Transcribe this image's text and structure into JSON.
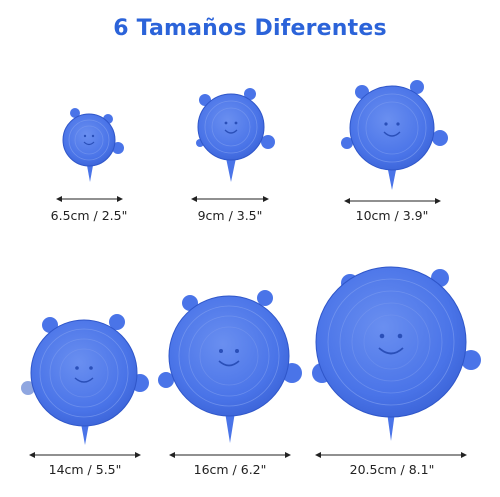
{
  "title": "6 Tamaños Diferentes",
  "colors": {
    "title": "#2b63d9",
    "lid_fill": "#4a74e8",
    "lid_edge": "#2f56c9",
    "lid_light": "#7d9cf0",
    "measure_line": "#222222"
  },
  "lids": [
    {
      "name": "lid-1",
      "size_label": "6.5cm / 2.5\""
    },
    {
      "name": "lid-2",
      "size_label": "9cm / 3.5\""
    },
    {
      "name": "lid-3",
      "size_label": "10cm / 3.9\""
    },
    {
      "name": "lid-4",
      "size_label": "14cm / 5.5\""
    },
    {
      "name": "lid-5",
      "size_label": "16cm / 6.2\""
    },
    {
      "name": "lid-6",
      "size_label": "20.5cm / 8.1\""
    }
  ]
}
